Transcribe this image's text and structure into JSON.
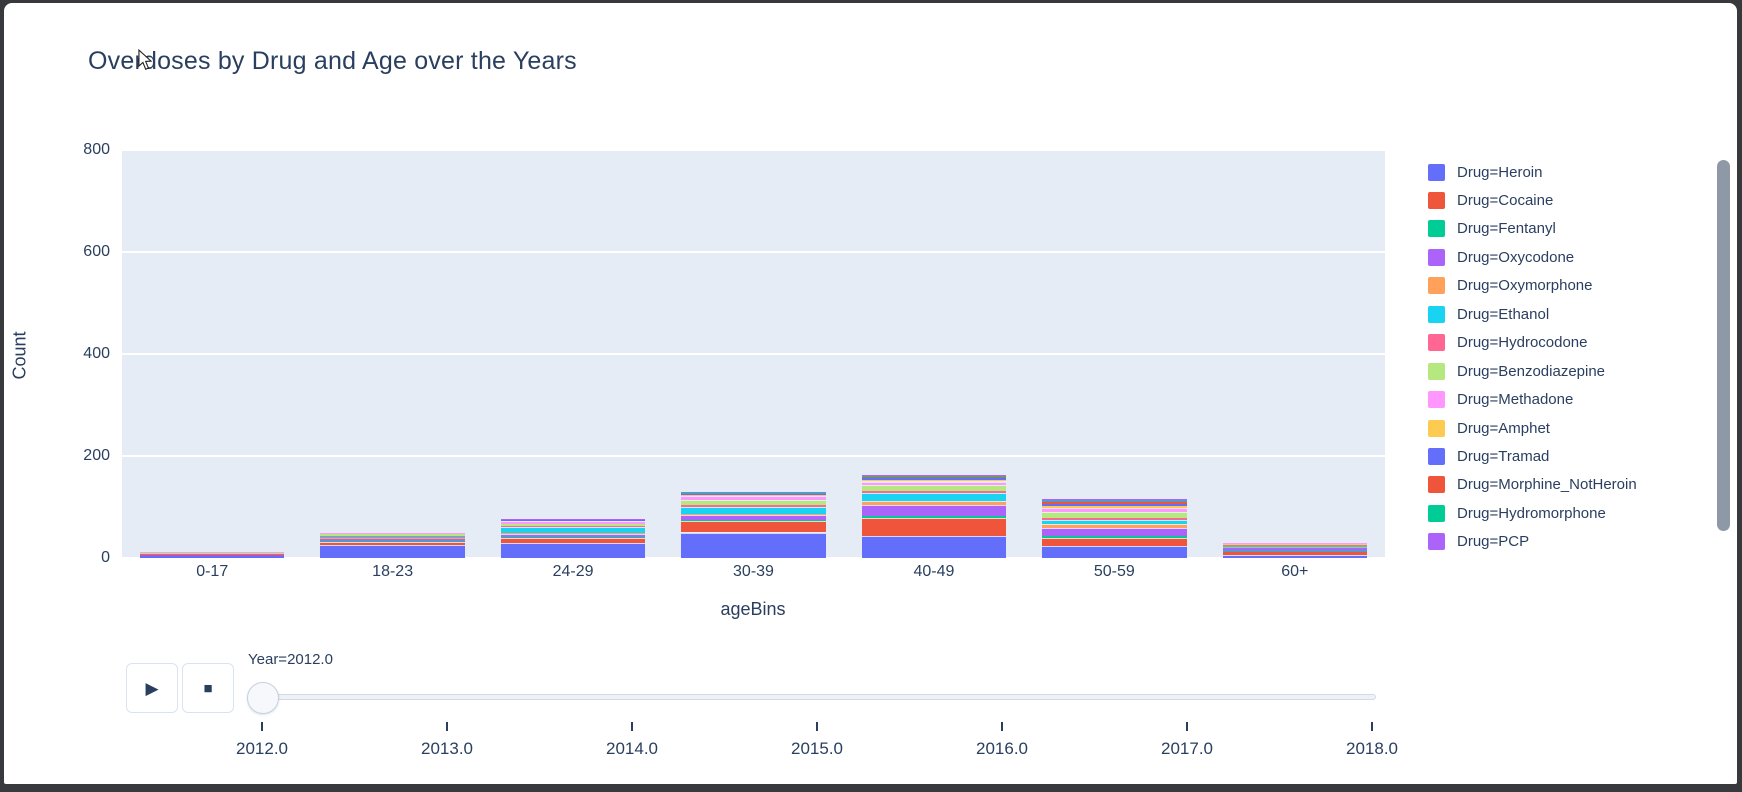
{
  "window": {
    "frame_color": "#38393c",
    "background": "#ffffff",
    "scrollbar_color": "#8e98a6"
  },
  "header": {
    "title": "Overdoses by Drug and Age over the Years"
  },
  "colors": {
    "text": "#2A3F5F",
    "plot_background": "#E5ECF6",
    "gridline": "#FFFFFF"
  },
  "chart_data": {
    "type": "bar",
    "stacked": true,
    "title": "Overdoses by Drug and Age over the Years",
    "xlabel": "ageBins",
    "ylabel": "Count",
    "categories": [
      "0-17",
      "18-23",
      "24-29",
      "30-39",
      "40-49",
      "50-59",
      "60+"
    ],
    "yticks": [
      0,
      200,
      400,
      600,
      800
    ],
    "ylim": [
      0,
      800
    ],
    "grid": true,
    "legend_position": "right",
    "frame_label": "Year=2012.0",
    "series": [
      {
        "name": "Heroin",
        "legend_label": "Drug=Heroin",
        "color": "#636EFA",
        "values": [
          3,
          25,
          30,
          50,
          44,
          23,
          6
        ]
      },
      {
        "name": "Cocaine",
        "legend_label": "Drug=Cocaine",
        "color": "#EF553B",
        "values": [
          4,
          7,
          9,
          22,
          34,
          16,
          7
        ]
      },
      {
        "name": "Fentanyl",
        "legend_label": "Drug=Fentanyl",
        "color": "#00CC96",
        "values": [
          0,
          1,
          2,
          3,
          4,
          5,
          1
        ]
      },
      {
        "name": "Oxycodone",
        "legend_label": "Drug=Oxycodone",
        "color": "#AB63FA",
        "values": [
          1,
          5,
          6,
          9,
          22,
          14,
          7
        ]
      },
      {
        "name": "Oxymorphone",
        "legend_label": "Drug=Oxymorphone",
        "color": "#FFA15A",
        "values": [
          0,
          1,
          2,
          3,
          7,
          8,
          1
        ]
      },
      {
        "name": "Ethanol",
        "legend_label": "Drug=Ethanol",
        "color": "#19D3F3",
        "values": [
          1,
          3,
          11,
          13,
          17,
          9,
          2
        ]
      },
      {
        "name": "Hydrocodone",
        "legend_label": "Drug=Hydrocodone",
        "color": "#FF6692",
        "values": [
          0,
          1,
          2,
          3,
          3,
          3,
          1
        ]
      },
      {
        "name": "Benzodiazepine",
        "legend_label": "Drug=Benzodiazepine",
        "color": "#B6E880",
        "values": [
          1,
          5,
          4,
          10,
          13,
          13,
          2
        ]
      },
      {
        "name": "Methadone",
        "legend_label": "Drug=Methadone",
        "color": "#FF97FF",
        "values": [
          2,
          2,
          6,
          9,
          6,
          7,
          2
        ]
      },
      {
        "name": "Amphet",
        "legend_label": "Drug=Amphet",
        "color": "#FECB52",
        "values": [
          0,
          0,
          2,
          2,
          3,
          4,
          0
        ]
      },
      {
        "name": "Tramad",
        "legend_label": "Drug=Tramad",
        "color": "#636EFA",
        "values": [
          0,
          0,
          1,
          2,
          3,
          4,
          0
        ]
      },
      {
        "name": "Morphine_NotHeroin",
        "legend_label": "Drug=Morphine_NotHeroin",
        "color": "#EF553B",
        "values": [
          0,
          0,
          0,
          1,
          2,
          3,
          0
        ]
      },
      {
        "name": "Hydromorphone",
        "legend_label": "Drug=Hydromorphone",
        "color": "#00CC96",
        "values": [
          0,
          0,
          0,
          1,
          2,
          3,
          0
        ]
      },
      {
        "name": "PCP",
        "legend_label": "Drug=PCP",
        "color": "#AB63FA",
        "values": [
          0,
          0,
          1,
          2,
          3,
          4,
          0
        ]
      }
    ]
  },
  "slider": {
    "current_label": "Year=2012.0",
    "play_icon": "▶",
    "stop_icon": "■",
    "ticks": [
      "2012.0",
      "2013.0",
      "2014.0",
      "2015.0",
      "2016.0",
      "2017.0",
      "2018.0"
    ],
    "value_index": 0
  }
}
